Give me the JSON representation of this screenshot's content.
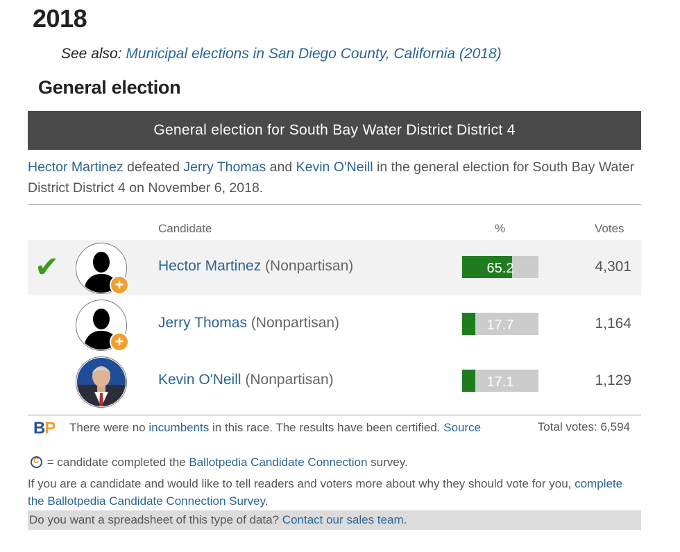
{
  "page": {
    "year": "2018",
    "see_also_label": "See also:",
    "see_also_link": "Municipal elections in San Diego County, California (2018)",
    "section_title": "General election"
  },
  "election": {
    "header": "General election for South Bay Water District District 4",
    "summary": {
      "winner": "Hector Martinez",
      "text_defeated": " defeated ",
      "opponent1": "Jerry Thomas",
      "text_and": " and ",
      "opponent2": "Kevin O'Neill",
      "text_rest": " in the general election for South Bay Water District District 4 on November 6, 2018."
    },
    "columns": {
      "candidate": "Candidate",
      "percent": "%",
      "votes": "Votes"
    },
    "winner_mark": "✔",
    "candidates": [
      {
        "name": "Hector Martinez",
        "party": " (Nonpartisan)",
        "percent": 65.2,
        "percent_label": "65.2",
        "votes": "4,301",
        "winner": true,
        "photo": "silhouette"
      },
      {
        "name": "Jerry Thomas",
        "party": " (Nonpartisan)",
        "percent": 17.7,
        "percent_label": "17.7",
        "votes": "1,164",
        "winner": false,
        "photo": "silhouette"
      },
      {
        "name": "Kevin O'Neill",
        "party": " (Nonpartisan)",
        "percent": 17.1,
        "percent_label": "17.1",
        "votes": "1,129",
        "winner": false,
        "photo": "headshot"
      }
    ],
    "notes": {
      "bp_b": "B",
      "bp_p": "P",
      "incumbent_pre": "There were no ",
      "incumbent_link": "incumbents",
      "incumbent_post": " in this race. The results have been certified. ",
      "source_link": "Source",
      "total_votes": "Total votes: 6,594",
      "cc_pre": " = candidate completed the ",
      "cc_link": "Ballotpedia Candidate Connection",
      "cc_post": " survey.",
      "invite_text": "If you are a candidate and would like to tell readers and voters more about why they should vote for you, ",
      "invite_link": "complete the Ballotpedia Candidate Connection Survey",
      "invite_end": ".",
      "sales_text": "Do you want a spreadsheet of this type of data? ",
      "sales_link": "Contact our sales team",
      "sales_end": "."
    }
  },
  "colors": {
    "header_bg": "#4a4a4a",
    "link": "#2a6496",
    "bar_fill": "#1f7d1f",
    "bar_bg": "#cccccc",
    "check": "#3c9a1f",
    "accent_orange": "#f0a030"
  }
}
